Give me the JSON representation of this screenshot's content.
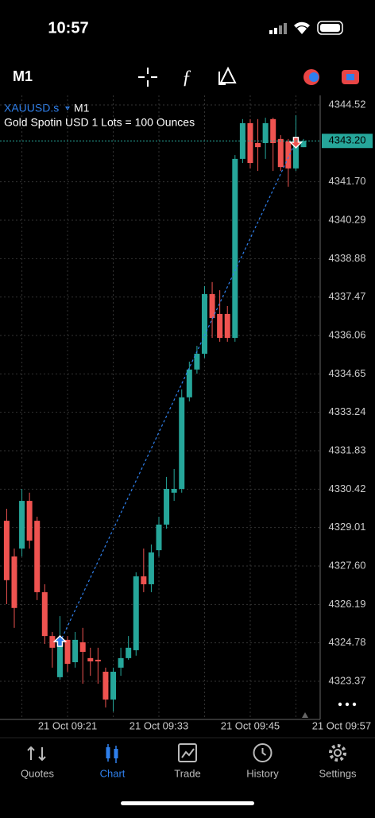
{
  "status_bar": {
    "time": "10:57"
  },
  "toolbar": {
    "timeframe": "M1"
  },
  "chart_data": {
    "type": "candlestick",
    "symbol": "XAUUSD.s",
    "timeframe": "M1",
    "description": "Gold Spotin USD 1 Lots = 100 Ounces",
    "up_color": "#26a69a",
    "down_color": "#ef5350",
    "grid": true,
    "categories": [
      null,
      null,
      null,
      null,
      null,
      null,
      null,
      null,
      "21 Oct 09:21",
      null,
      null,
      null,
      null,
      null,
      null,
      null,
      null,
      null,
      null,
      null,
      "21 Oct 09:33",
      null,
      null,
      null,
      null,
      null,
      null,
      null,
      null,
      null,
      null,
      null,
      "21 Oct 09:45",
      null,
      null,
      null,
      null,
      null,
      null,
      null,
      null,
      null,
      null,
      null,
      "21 Oct 09:57"
    ],
    "open": [
      4329.26,
      4327.95,
      4328.24,
      4329.99,
      4329.26,
      4326.64,
      4325.03,
      4323.52,
      4324.89,
      4324.07,
      4324.8,
      4324.22,
      4324.16,
      4323.72,
      4322.7,
      4323.87,
      4324.22,
      4324.51,
      4327.22,
      4326.93,
      4328.18,
      4329.12,
      4330.29,
      4330.43,
      4333.79,
      4334.81,
      4335.39,
      4337.58,
      4336.85,
      4336.85,
      4335.97,
      4342.54,
      4343.85,
      4343.12,
      4343.12,
      4344.0,
      4343.27,
      4343.18,
      4342.19,
      4342.97,
      null,
      null,
      null,
      null,
      null
    ],
    "high": [
      4329.7,
      4328.24,
      4330.43,
      4330.29,
      4329.41,
      4326.93,
      4325.18,
      4325.76,
      4325.03,
      4325.18,
      4325.33,
      4324.6,
      4324.6,
      4323.87,
      4323.87,
      4324.6,
      4325.03,
      4327.37,
      4328.24,
      4328.39,
      4329.41,
      4330.87,
      4331.16,
      4334.08,
      4335.1,
      4335.68,
      4337.87,
      4338.02,
      4337.72,
      4337.14,
      4342.68,
      4344.0,
      4344.0,
      4344.0,
      4344.05,
      4344.05,
      4343.41,
      4343.27,
      4344.14,
      4343.27,
      null,
      null,
      null,
      null,
      null
    ],
    "low": [
      4326.2,
      4325.33,
      4327.95,
      4328.24,
      4326.35,
      4324.74,
      4323.87,
      4323.43,
      4323.72,
      4323.87,
      4323.28,
      4323.57,
      4323.28,
      4322.41,
      4322.26,
      4323.57,
      4324.16,
      4324.31,
      4326.64,
      4326.64,
      4327.95,
      4328.97,
      4329.99,
      4330.29,
      4333.64,
      4334.66,
      4335.24,
      4335.97,
      4335.83,
      4335.83,
      4335.83,
      4342.39,
      4342.19,
      4342.1,
      4342.54,
      4342.1,
      4342.1,
      4341.52,
      4342.1,
      4342.97,
      null,
      null,
      null,
      null,
      null
    ],
    "close": [
      4327.08,
      4326.06,
      4329.99,
      4328.53,
      4326.64,
      4325.03,
      4324.6,
      4324.89,
      4324.01,
      4324.89,
      4324.45,
      4324.1,
      4324.1,
      4322.7,
      4323.72,
      4324.22,
      4324.6,
      4327.22,
      4326.93,
      4328.1,
      4329.12,
      4330.43,
      4330.43,
      4333.79,
      4334.81,
      4335.39,
      4337.58,
      4336.7,
      4335.97,
      4335.97,
      4342.54,
      4343.85,
      4342.39,
      4342.97,
      4343.85,
      4343.12,
      4342.24,
      4342.19,
      4343.18,
      4343.2,
      null,
      null,
      null,
      null,
      null
    ],
    "ylim": [
      4321.97,
      4344.87
    ],
    "yticks": [
      4344.52,
      {
        "value": 4341.7,
        "label": "4341.70"
      },
      4340.29,
      4338.88,
      4337.47,
      4336.06,
      4334.65,
      4333.24,
      4331.83,
      4330.42,
      4329.01,
      {
        "value": 4327.6,
        "label": "4327.60"
      },
      4326.19,
      4324.78,
      4323.37
    ],
    "current_price": {
      "value": 4343.2,
      "label": "4343.20"
    },
    "trades": [
      {
        "index": 7,
        "price": 4324.8,
        "side": "buy"
      },
      {
        "index": 38,
        "price": 4343.18,
        "side": "sell"
      }
    ]
  },
  "nav": {
    "tabs": [
      "Quotes",
      "Chart",
      "Trade",
      "History",
      "Settings"
    ],
    "active": 1
  }
}
